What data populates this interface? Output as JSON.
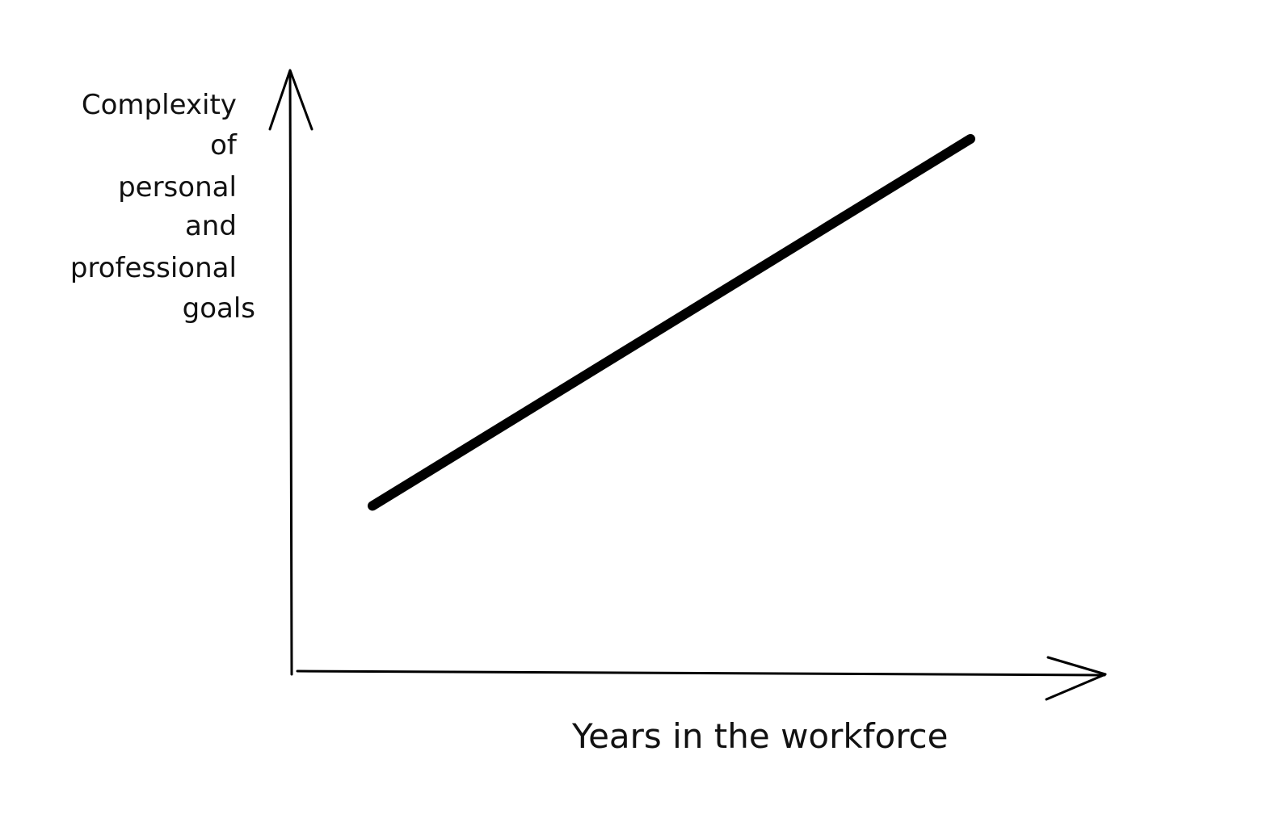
{
  "chart_data": {
    "type": "line",
    "title": "",
    "xlabel": "Years in the workforce",
    "ylabel_lines": [
      "Complexity",
      "of",
      "personal",
      "and",
      "professional",
      "goals"
    ],
    "xlim": [
      0,
      10
    ],
    "ylim": [
      0,
      10
    ],
    "grid": false,
    "legend": "none",
    "series": [
      {
        "x": [
          1,
          8.4
        ],
        "y": [
          2.8,
          8.9
        ]
      }
    ],
    "colors": {
      "line": "#000000",
      "axis": "#000000",
      "text": "#111111",
      "background": "#ffffff"
    }
  }
}
